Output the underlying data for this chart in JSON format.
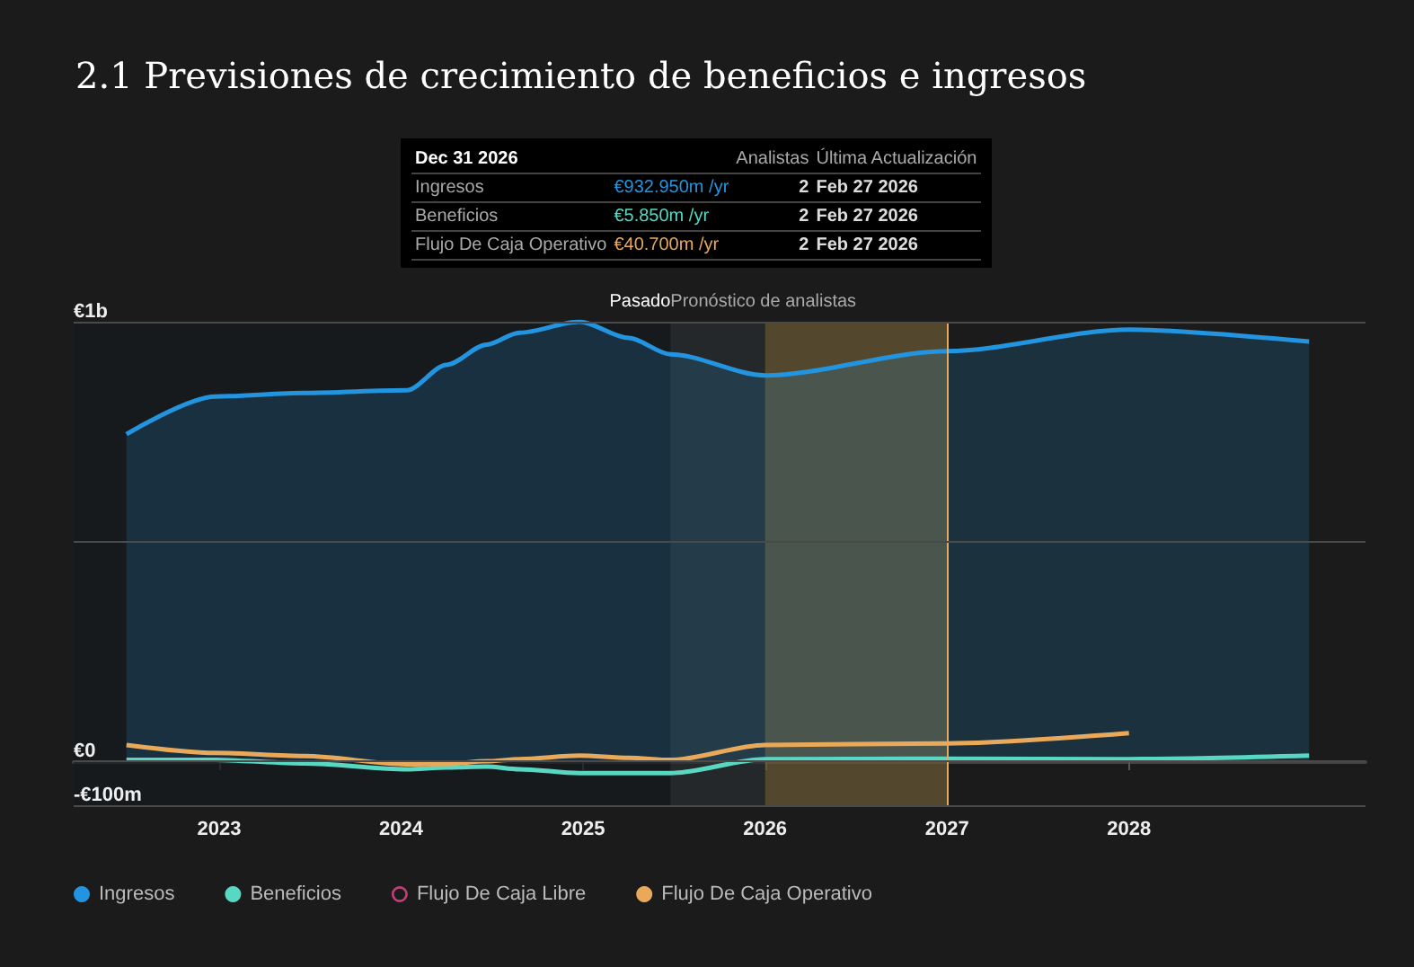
{
  "chart_data": {
    "type": "area",
    "title": "2.1 Previsiones de crecimiento de beneficios e ingresos",
    "x": [
      2022.49,
      2022.98,
      2023.47,
      2024.03,
      2024.25,
      2024.47,
      2024.65,
      2024.98,
      2025.25,
      2025.48,
      2026.0,
      2027.0,
      2028.0,
      2028.99
    ],
    "series": [
      {
        "name": "Ingresos",
        "color": "#2394df",
        "values": [
          744000000,
          830000000,
          838000000,
          844000000,
          902000000,
          948000000,
          975000000,
          1000000000,
          963000000,
          926000000,
          878000000,
          932950000,
          982000000,
          955000000
        ]
      },
      {
        "name": "Beneficios",
        "color": "#58d7c2",
        "type": "line",
        "values": [
          3000000,
          3000000,
          -5000000,
          -18000000,
          -14000000,
          -12000000,
          -18000000,
          -27000000,
          -27000000,
          -27000000,
          5000000,
          5850000,
          5000000,
          13000000
        ]
      },
      {
        "name": "Flujo De Caja Libre",
        "color": "#c0407a",
        "type": "line",
        "values": [
          null,
          null,
          null,
          null,
          null,
          null,
          null,
          null,
          null,
          null,
          null,
          null,
          null,
          null
        ]
      },
      {
        "name": "Flujo De Caja Operativo",
        "color": "#e9a95a",
        "type": "line",
        "values": [
          37000000,
          19000000,
          12000000,
          -7000000,
          -6000000,
          0,
          5000000,
          13000000,
          8000000,
          3000000,
          37000000,
          40700000,
          64000000,
          null
        ]
      }
    ],
    "xlim": [
      2022.2,
      2029.3
    ],
    "xticks": [
      2023,
      2024,
      2025,
      2026,
      2027,
      2028
    ],
    "ylim": [
      -100000000,
      1000000000
    ],
    "yticks": [
      {
        "value": -100000000,
        "label": "-€100m"
      },
      {
        "value": 0,
        "label": "€0"
      },
      {
        "value": 500000000,
        "label": null
      },
      {
        "value": 1000000000,
        "label": "€1b"
      }
    ],
    "grid": "y",
    "legend": "bottom left",
    "marker": "none",
    "line_style": "solid",
    "bands": [
      {
        "axis": "x",
        "from": 2022.2,
        "to": 2025.48,
        "label": "Pasado",
        "color": "#161a1e"
      },
      {
        "axis": "x",
        "from": 2025.48,
        "to": 2026.0,
        "label": "Pronóstico de analistas",
        "color": "#2a2d31"
      },
      {
        "axis": "x",
        "from": 2026.0,
        "to": 2027.0,
        "label": null,
        "color": "#6b5a36"
      }
    ],
    "ref_lines": [
      {
        "axis": "x",
        "value": 2027.0,
        "label": null,
        "color": "#e9a95a",
        "line_style": "solid"
      }
    ],
    "annotations": [
      "Dec 31 2026",
      "Analistas",
      "Última Actualización",
      "Ingresos",
      "€932.950m /yr",
      "2",
      "Feb 27 2026",
      "Beneficios",
      "€5.850m /yr",
      "2",
      "Feb 27 2026",
      "Flujo De Caja Operativo",
      "€40.700m /yr",
      "2",
      "Feb 27 2026"
    ]
  }
}
